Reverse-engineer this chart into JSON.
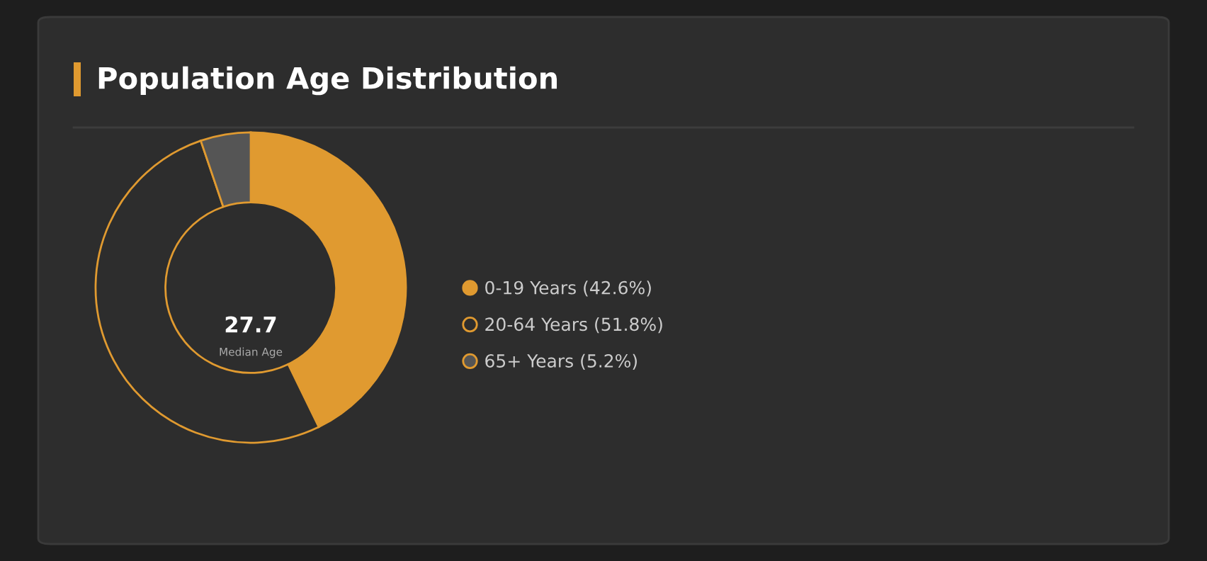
{
  "chart_data": {
    "type": "donut",
    "title": "Population Age Distribution",
    "categories": [
      "0-19 Years (42.6%)",
      "20-64 Years (51.8%)",
      "65+ Years (5.2%)"
    ],
    "values": [
      42.6,
      51.8,
      5.2
    ],
    "colors": [
      "#e09a30",
      "#2d2d2d",
      "#555555"
    ],
    "legend": "right",
    "annotations": [
      "27.7",
      "Median Age"
    ]
  }
}
